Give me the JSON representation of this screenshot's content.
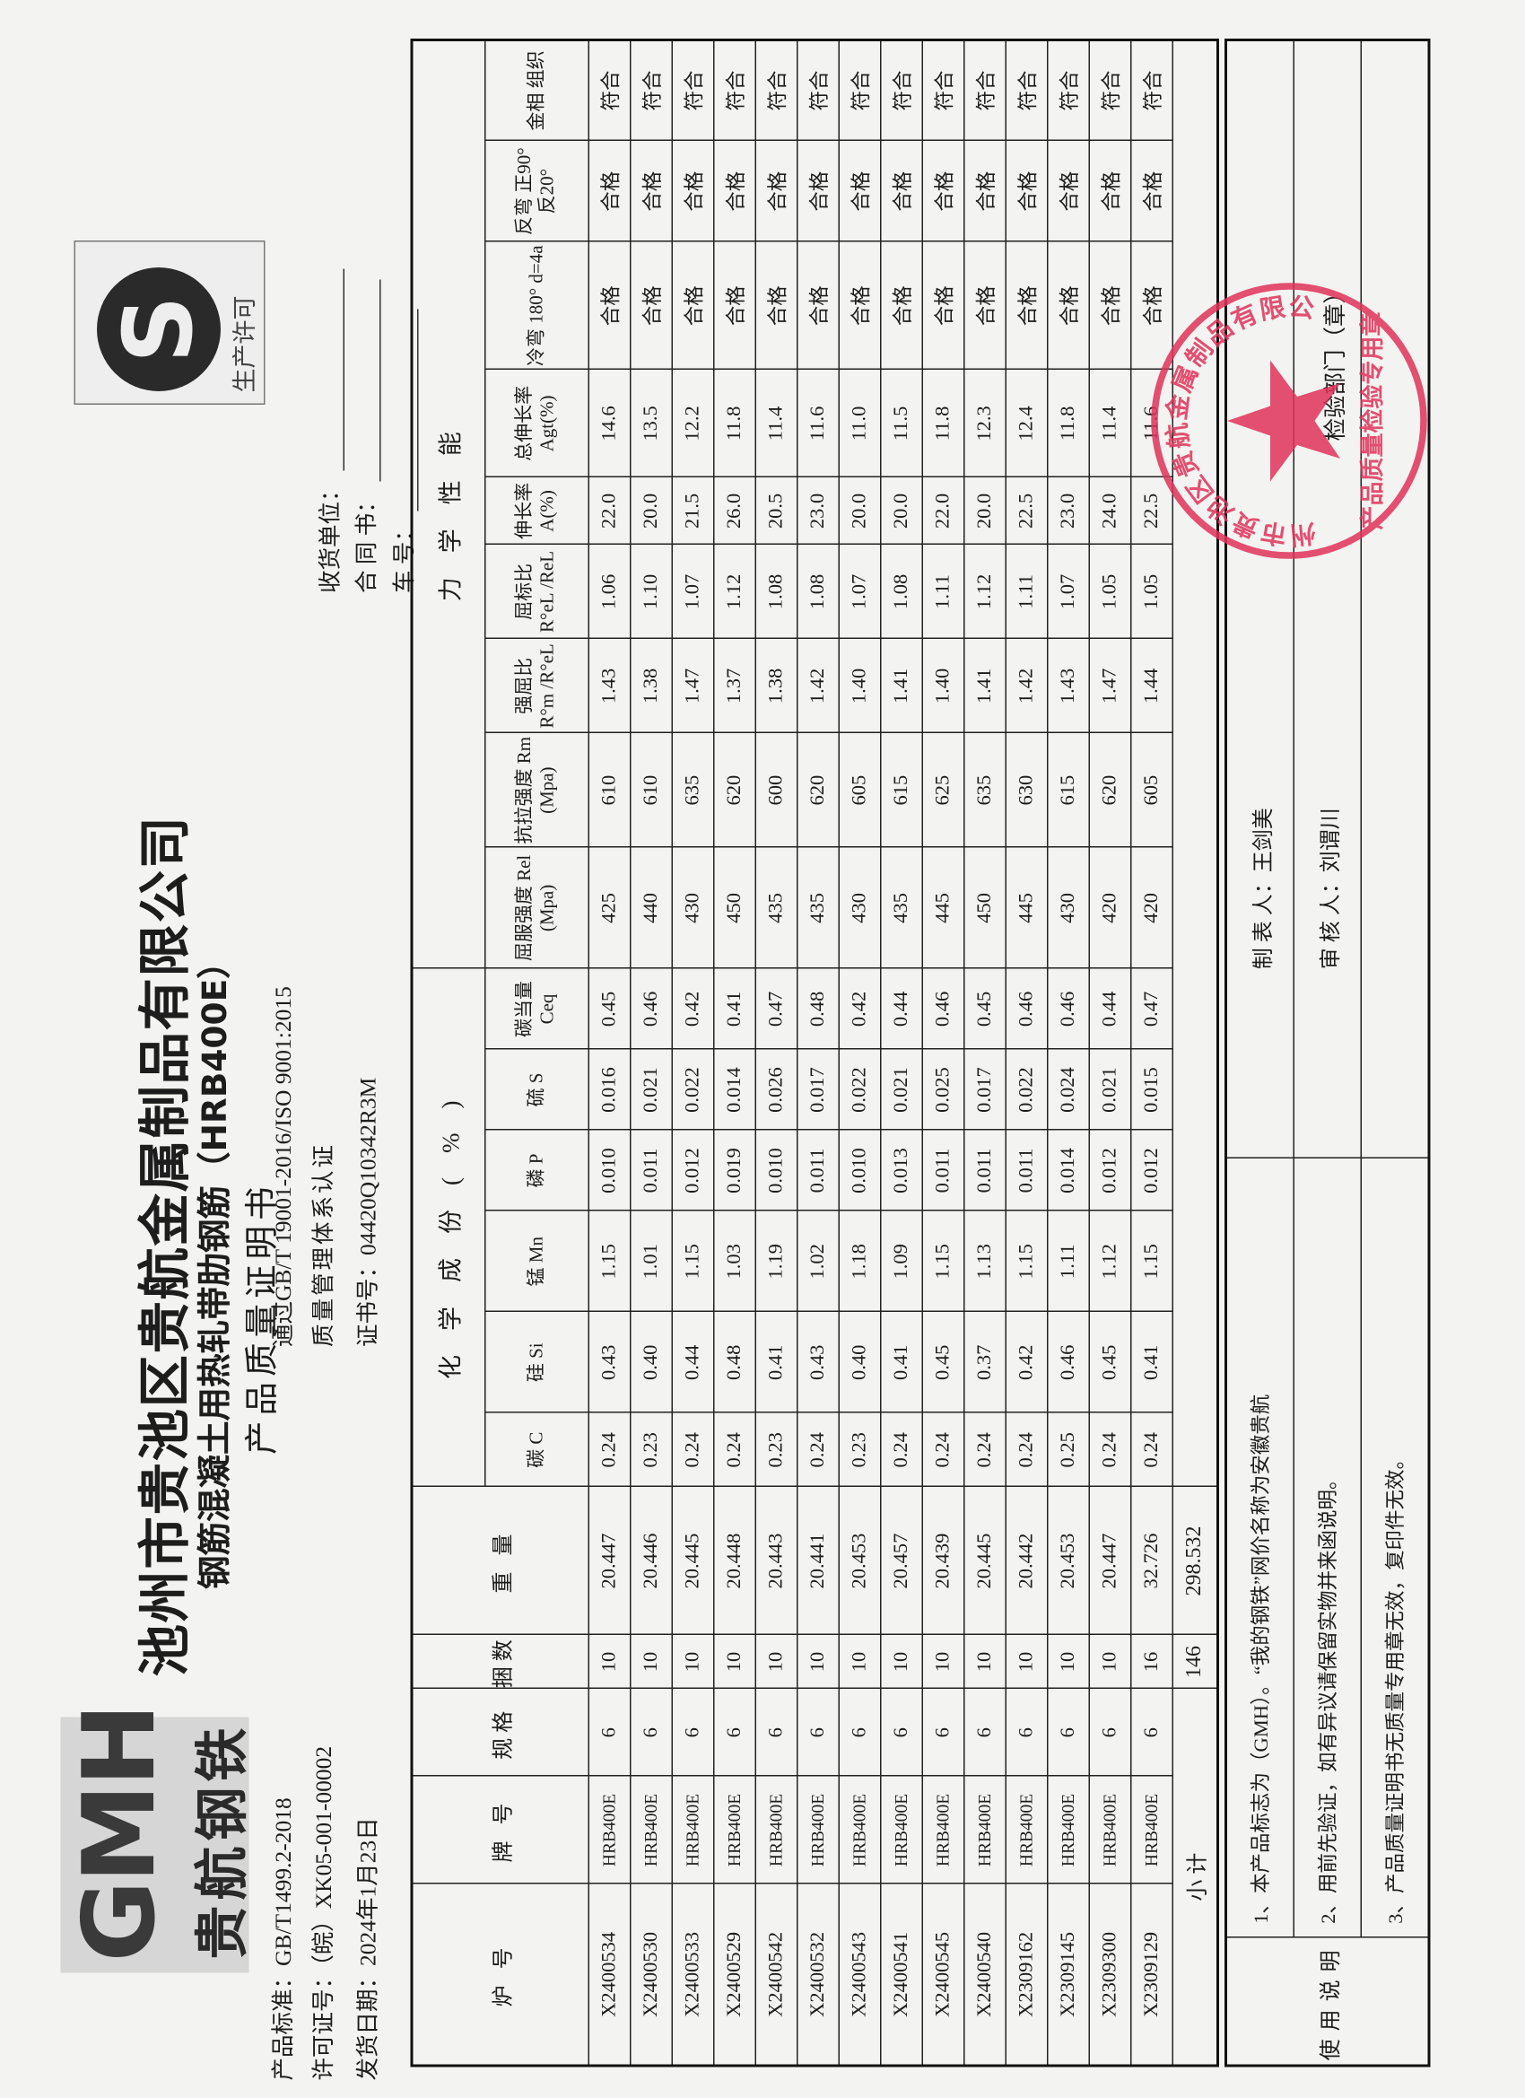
{
  "logo": {
    "mark": "GMH",
    "text": "贵航钢铁"
  },
  "header": {
    "company": "池州市贵池区贵航金属制品有限公司",
    "product": "钢筋混凝土用热轧带肋钢筋（HRB400E）",
    "doc_title": "产品质量证明书",
    "standard": "产品标准：GB/T1499.2-2018",
    "license": "许可证号：（皖）XK05-001-00002",
    "ship_date": "发货日期：2024年1月23日",
    "cert_line1": "通过GB/T 19001-2016/ISO 9001:2015",
    "cert_line2": "质量管理体系认证",
    "cert_no": "证书号：04420Q10342R3M",
    "receiver_label": "收货单位：",
    "contract_label": "合 同 书：",
    "car_label": "车      号：",
    "qs_text": "生产许可",
    "qs_mark": "S"
  },
  "table": {
    "group_chem": "化学成份(%)",
    "group_mech": "力学性能",
    "headers": [
      "炉 号",
      "牌 号",
      "规格",
      "捆数",
      "重 量",
      "碳 C",
      "硅 Si",
      "锰 Mn",
      "磷 P",
      "硫 S",
      "碳当量 Ceq",
      "屈服强度 Rel (Mpa)",
      "抗拉强度 Rm (Mpa)",
      "强屈比 R°m /R°eL",
      "屈标比 R°eL /ReL",
      "伸长率 A(%)",
      "总伸长率 Agt(%)",
      "冷弯 180° d=4a",
      "反弯 正90° 反20°",
      "金相 组织"
    ],
    "rows": [
      [
        "X2400534",
        "HRB400E",
        "6",
        "10",
        "20.447",
        "0.24",
        "0.43",
        "1.15",
        "0.010",
        "0.016",
        "0.45",
        "425",
        "610",
        "1.43",
        "1.06",
        "22.0",
        "14.6",
        "合格",
        "合格",
        "符合"
      ],
      [
        "X2400530",
        "HRB400E",
        "6",
        "10",
        "20.446",
        "0.23",
        "0.40",
        "1.01",
        "0.011",
        "0.021",
        "0.46",
        "440",
        "610",
        "1.38",
        "1.10",
        "20.0",
        "13.5",
        "合格",
        "合格",
        "符合"
      ],
      [
        "X2400533",
        "HRB400E",
        "6",
        "10",
        "20.445",
        "0.24",
        "0.44",
        "1.15",
        "0.012",
        "0.022",
        "0.42",
        "430",
        "635",
        "1.47",
        "1.07",
        "21.5",
        "12.2",
        "合格",
        "合格",
        "符合"
      ],
      [
        "X2400529",
        "HRB400E",
        "6",
        "10",
        "20.448",
        "0.24",
        "0.48",
        "1.03",
        "0.019",
        "0.014",
        "0.41",
        "450",
        "620",
        "1.37",
        "1.12",
        "26.0",
        "11.8",
        "合格",
        "合格",
        "符合"
      ],
      [
        "X2400542",
        "HRB400E",
        "6",
        "10",
        "20.443",
        "0.23",
        "0.41",
        "1.19",
        "0.010",
        "0.026",
        "0.47",
        "435",
        "600",
        "1.38",
        "1.08",
        "20.5",
        "11.4",
        "合格",
        "合格",
        "符合"
      ],
      [
        "X2400532",
        "HRB400E",
        "6",
        "10",
        "20.441",
        "0.24",
        "0.43",
        "1.02",
        "0.011",
        "0.017",
        "0.48",
        "435",
        "620",
        "1.42",
        "1.08",
        "23.0",
        "11.6",
        "合格",
        "合格",
        "符合"
      ],
      [
        "X2400543",
        "HRB400E",
        "6",
        "10",
        "20.453",
        "0.23",
        "0.40",
        "1.18",
        "0.010",
        "0.022",
        "0.42",
        "430",
        "605",
        "1.40",
        "1.07",
        "20.0",
        "11.0",
        "合格",
        "合格",
        "符合"
      ],
      [
        "X2400541",
        "HRB400E",
        "6",
        "10",
        "20.457",
        "0.24",
        "0.41",
        "1.09",
        "0.013",
        "0.021",
        "0.44",
        "435",
        "615",
        "1.41",
        "1.08",
        "20.0",
        "11.5",
        "合格",
        "合格",
        "符合"
      ],
      [
        "X2400545",
        "HRB400E",
        "6",
        "10",
        "20.439",
        "0.24",
        "0.45",
        "1.15",
        "0.011",
        "0.025",
        "0.46",
        "445",
        "625",
        "1.40",
        "1.11",
        "22.0",
        "11.8",
        "合格",
        "合格",
        "符合"
      ],
      [
        "X2400540",
        "HRB400E",
        "6",
        "10",
        "20.445",
        "0.24",
        "0.37",
        "1.13",
        "0.011",
        "0.017",
        "0.45",
        "450",
        "635",
        "1.41",
        "1.12",
        "20.0",
        "12.3",
        "合格",
        "合格",
        "符合"
      ],
      [
        "X2309162",
        "HRB400E",
        "6",
        "10",
        "20.442",
        "0.24",
        "0.42",
        "1.15",
        "0.011",
        "0.022",
        "0.46",
        "445",
        "630",
        "1.42",
        "1.11",
        "22.5",
        "12.4",
        "合格",
        "合格",
        "符合"
      ],
      [
        "X2309145",
        "HRB400E",
        "6",
        "10",
        "20.453",
        "0.25",
        "0.46",
        "1.11",
        "0.014",
        "0.024",
        "0.46",
        "430",
        "615",
        "1.43",
        "1.07",
        "23.0",
        "11.8",
        "合格",
        "合格",
        "符合"
      ],
      [
        "X2309300",
        "HRB400E",
        "6",
        "10",
        "20.447",
        "0.24",
        "0.45",
        "1.12",
        "0.012",
        "0.021",
        "0.44",
        "420",
        "620",
        "1.47",
        "1.05",
        "24.0",
        "11.4",
        "合格",
        "合格",
        "符合"
      ],
      [
        "X2309129",
        "HRB400E",
        "6",
        "16",
        "32.726",
        "0.24",
        "0.41",
        "1.15",
        "0.012",
        "0.015",
        "0.47",
        "420",
        "605",
        "1.44",
        "1.05",
        "22.5",
        "11.6",
        "合格",
        "合格",
        "符合"
      ]
    ],
    "subtotal": {
      "label": "小 计",
      "bundles": "146",
      "weight": "298.532"
    }
  },
  "notes": {
    "label": "使用说明",
    "items": [
      "1、本产品标志为（GMH）。“我的钢铁”网价名称为安徽贵航",
      "2、用前先验证，如有异议请保留实物并来函说明。",
      "3、产品质量证明书无质量专用章无效，复印件无效。"
    ],
    "preparer": "制 表 人：王剑美",
    "reviewer": "审 核 人：刘谓川",
    "inspection_dept": "检验部门（章）"
  },
  "stamp": {
    "outer_text": "池州市贵池区贵航金属制品有限公司",
    "inner_text": "产品质量检验专用章",
    "color": "#e0335a"
  }
}
